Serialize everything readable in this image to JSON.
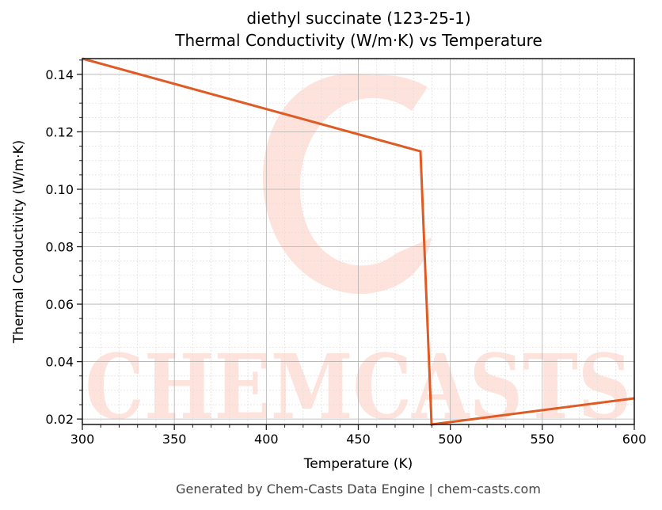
{
  "title": {
    "line1": "diethyl succinate (123-25-1)",
    "line2": "Thermal Conductivity (W/m·K) vs Temperature"
  },
  "footer": "Generated by Chem-Casts Data Engine | chem-casts.com",
  "watermark": "CHEMCASTS",
  "colors": {
    "line": "#e05a24",
    "watermark": "#fde3dc",
    "grid_major": "#b0b0b0",
    "grid_minor": "#dddddd"
  },
  "chart_data": {
    "type": "line",
    "title": "diethyl succinate (123-25-1) Thermal Conductivity (W/m·K) vs Temperature",
    "xlabel": "Temperature (K)",
    "ylabel": "Thermal Conductivity (W/m·K)",
    "xlim": [
      300,
      600
    ],
    "ylim": [
      0.0181,
      0.1455
    ],
    "xticks": [
      300,
      350,
      400,
      450,
      500,
      550,
      600
    ],
    "xtick_labels": [
      "300",
      "350",
      "400",
      "450",
      "500",
      "550",
      "600"
    ],
    "yticks": [
      0.02,
      0.04,
      0.06,
      0.08,
      0.1,
      0.12,
      0.14
    ],
    "ytick_labels": [
      "0.02",
      "0.04",
      "0.06",
      "0.08",
      "0.10",
      "0.12",
      "0.14"
    ],
    "grid": true,
    "legend": null,
    "series": [
      {
        "name": "Thermal Conductivity",
        "x": [
          300,
          483.8,
          489.8,
          600
        ],
        "y": [
          0.1455,
          0.1132,
          0.0181,
          0.0272
        ]
      }
    ]
  }
}
